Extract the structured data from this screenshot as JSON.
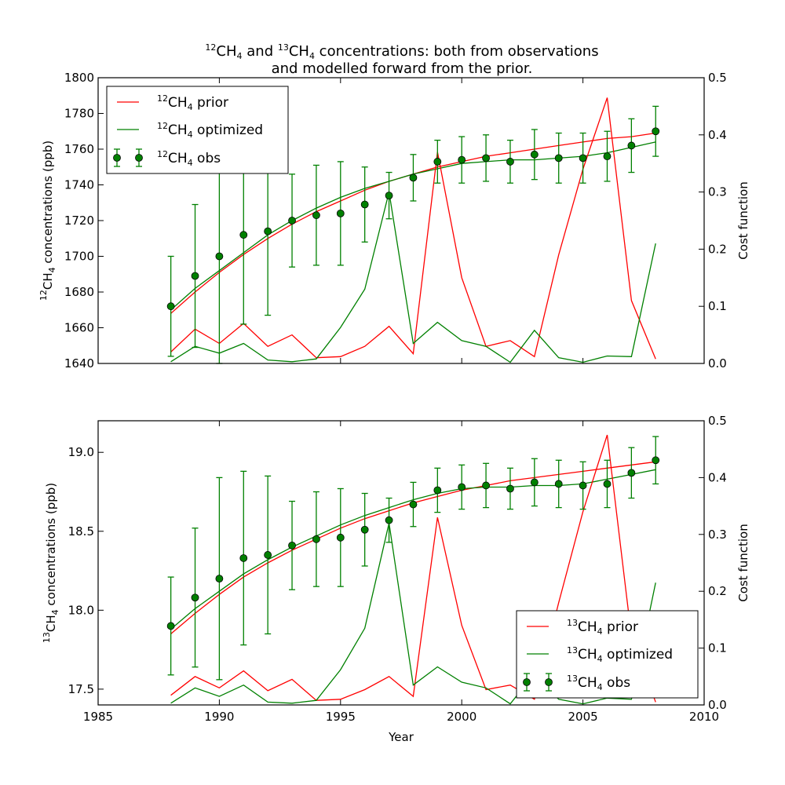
{
  "title": {
    "line1_pre": "",
    "line1_sup1": "12",
    "line1_mid1": "CH",
    "line1_sub1": "4",
    "line1_mid2": " and ",
    "line1_sup2": "13",
    "line1_mid3": "CH",
    "line1_sub2": "4",
    "line1_post": " concentrations: both from observations",
    "line2": "and modelled forward from the prior."
  },
  "colors": {
    "prior": "#ff0000",
    "optimized": "#008000",
    "obs": "#008000"
  },
  "chart_data": [
    {
      "type": "line",
      "title": "12CH4 and 13CH4 concentrations: both from observations and modelled forward from the prior.",
      "xlabel": "",
      "ylabel_sup": "12",
      "ylabel_main": "CH",
      "ylabel_sub": "4",
      "ylabel_post": " concentrations (ppb)",
      "y2label": "Cost function",
      "xlim": [
        1985,
        2010
      ],
      "ylim": [
        1640,
        1800
      ],
      "y2lim": [
        0.0,
        0.5
      ],
      "xticks": [
        "1985",
        "1990",
        "1995",
        "2000",
        "2005",
        "2010"
      ],
      "yticks": [
        "1640",
        "1660",
        "1680",
        "1700",
        "1720",
        "1740",
        "1760",
        "1780",
        "1800"
      ],
      "y2ticks": [
        "0.0",
        "0.1",
        "0.2",
        "0.3",
        "0.4",
        "0.5"
      ],
      "legend_position": "top-left",
      "legend": [
        {
          "sup": "12",
          "main": "CH",
          "sub": "4",
          "post": " prior"
        },
        {
          "sup": "12",
          "main": "CH",
          "sub": "4",
          "post": " optimized"
        },
        {
          "sup": "12",
          "main": "CH",
          "sub": "4",
          "post": " obs"
        }
      ],
      "x": [
        1988,
        1989,
        1990,
        1991,
        1992,
        1993,
        1994,
        1995,
        1996,
        1997,
        1998,
        1999,
        2000,
        2001,
        2002,
        2003,
        2004,
        2005,
        2006,
        2007,
        2008
      ],
      "series": [
        {
          "role": "prior",
          "axis": "left",
          "values": [
            1668,
            1680,
            1691,
            1701,
            1710,
            1718,
            1725,
            1731,
            1737,
            1742,
            1746,
            1750,
            1753,
            1756,
            1758,
            1760,
            1762,
            1764,
            1766,
            1767,
            1769
          ]
        },
        {
          "role": "optimized",
          "axis": "left",
          "values": [
            1670,
            1682,
            1692,
            1702,
            1712,
            1720,
            1727,
            1733,
            1738,
            1742,
            1746,
            1749,
            1752,
            1753,
            1754,
            1754,
            1755,
            1756,
            1758,
            1761,
            1764
          ]
        },
        {
          "role": "prior_cost",
          "axis": "right",
          "values": [
            0.02,
            0.06,
            0.035,
            0.07,
            0.03,
            0.05,
            0.01,
            0.012,
            0.03,
            0.065,
            0.017,
            0.37,
            0.15,
            0.03,
            0.04,
            0.012,
            0.19,
            0.34,
            0.465,
            0.11,
            0.008
          ]
        },
        {
          "role": "optimized_cost",
          "axis": "right",
          "values": [
            0.003,
            0.03,
            0.018,
            0.035,
            0.006,
            0.003,
            0.008,
            0.063,
            0.13,
            0.3,
            0.035,
            0.072,
            0.04,
            0.03,
            0.002,
            0.058,
            0.01,
            0.002,
            0.013,
            0.012,
            0.21
          ]
        }
      ],
      "obs": {
        "values": [
          1672,
          1689,
          1700,
          1712,
          1714,
          1720,
          1723,
          1724,
          1729,
          1734,
          1744,
          1753,
          1754,
          1755,
          1753,
          1757,
          1755,
          1755,
          1756,
          1762,
          1770
        ],
        "errors": [
          28,
          40,
          60,
          50,
          47,
          26,
          28,
          29,
          21,
          13,
          13,
          12,
          13,
          13,
          12,
          14,
          14,
          14,
          14,
          15,
          14
        ]
      }
    },
    {
      "type": "line",
      "xlabel": "Year",
      "ylabel_sup": "13",
      "ylabel_main": "CH",
      "ylabel_sub": "4",
      "ylabel_post": " concentrations (ppb)",
      "y2label": "Cost function",
      "xlim": [
        1985,
        2010
      ],
      "ylim": [
        17.4,
        19.2
      ],
      "y2lim": [
        0.0,
        0.5
      ],
      "xticks": [
        "1985",
        "1990",
        "1995",
        "2000",
        "2005",
        "2010"
      ],
      "yticks": [
        "17.5",
        "18.0",
        "18.5",
        "19.0"
      ],
      "ytick_values": [
        17.5,
        18.0,
        18.5,
        19.0
      ],
      "y2ticks": [
        "0.0",
        "0.1",
        "0.2",
        "0.3",
        "0.4",
        "0.5"
      ],
      "legend_position": "bottom-right",
      "legend": [
        {
          "sup": "13",
          "main": "CH",
          "sub": "4",
          "post": " prior"
        },
        {
          "sup": "13",
          "main": "CH",
          "sub": "4",
          "post": " optimized"
        },
        {
          "sup": "13",
          "main": "CH",
          "sub": "4",
          "post": " obs"
        }
      ],
      "x": [
        1988,
        1989,
        1990,
        1991,
        1992,
        1993,
        1994,
        1995,
        1996,
        1997,
        1998,
        1999,
        2000,
        2001,
        2002,
        2003,
        2004,
        2005,
        2006,
        2007,
        2008
      ],
      "series": [
        {
          "role": "prior",
          "axis": "left",
          "values": [
            17.85,
            17.98,
            18.1,
            18.21,
            18.3,
            18.38,
            18.45,
            18.52,
            18.58,
            18.63,
            18.68,
            18.72,
            18.76,
            18.79,
            18.82,
            18.84,
            18.86,
            18.88,
            18.9,
            18.92,
            18.94
          ]
        },
        {
          "role": "optimized",
          "axis": "left",
          "values": [
            17.88,
            18.01,
            18.12,
            18.23,
            18.32,
            18.4,
            18.47,
            18.54,
            18.6,
            18.65,
            18.7,
            18.74,
            18.77,
            18.78,
            18.78,
            18.79,
            18.79,
            18.8,
            18.83,
            18.86,
            18.89
          ]
        },
        {
          "role": "prior_cost",
          "axis": "right",
          "values": [
            0.017,
            0.05,
            0.03,
            0.06,
            0.025,
            0.045,
            0.008,
            0.01,
            0.027,
            0.05,
            0.015,
            0.33,
            0.14,
            0.027,
            0.035,
            0.01,
            0.18,
            0.34,
            0.475,
            0.12,
            0.005
          ]
        },
        {
          "role": "optimized_cost",
          "axis": "right",
          "values": [
            0.003,
            0.03,
            0.015,
            0.035,
            0.005,
            0.003,
            0.008,
            0.062,
            0.135,
            0.32,
            0.035,
            0.067,
            0.04,
            0.03,
            0.002,
            0.055,
            0.01,
            0.002,
            0.012,
            0.01,
            0.215
          ]
        }
      ],
      "obs": {
        "values": [
          17.9,
          18.08,
          18.2,
          18.33,
          18.35,
          18.41,
          18.45,
          18.46,
          18.51,
          18.57,
          18.67,
          18.76,
          18.78,
          18.79,
          18.77,
          18.81,
          18.8,
          18.79,
          18.8,
          18.87,
          18.95
        ],
        "errors": [
          0.31,
          0.44,
          0.64,
          0.55,
          0.5,
          0.28,
          0.3,
          0.31,
          0.23,
          0.14,
          0.14,
          0.14,
          0.14,
          0.14,
          0.13,
          0.15,
          0.15,
          0.15,
          0.15,
          0.16,
          0.15
        ]
      }
    }
  ]
}
